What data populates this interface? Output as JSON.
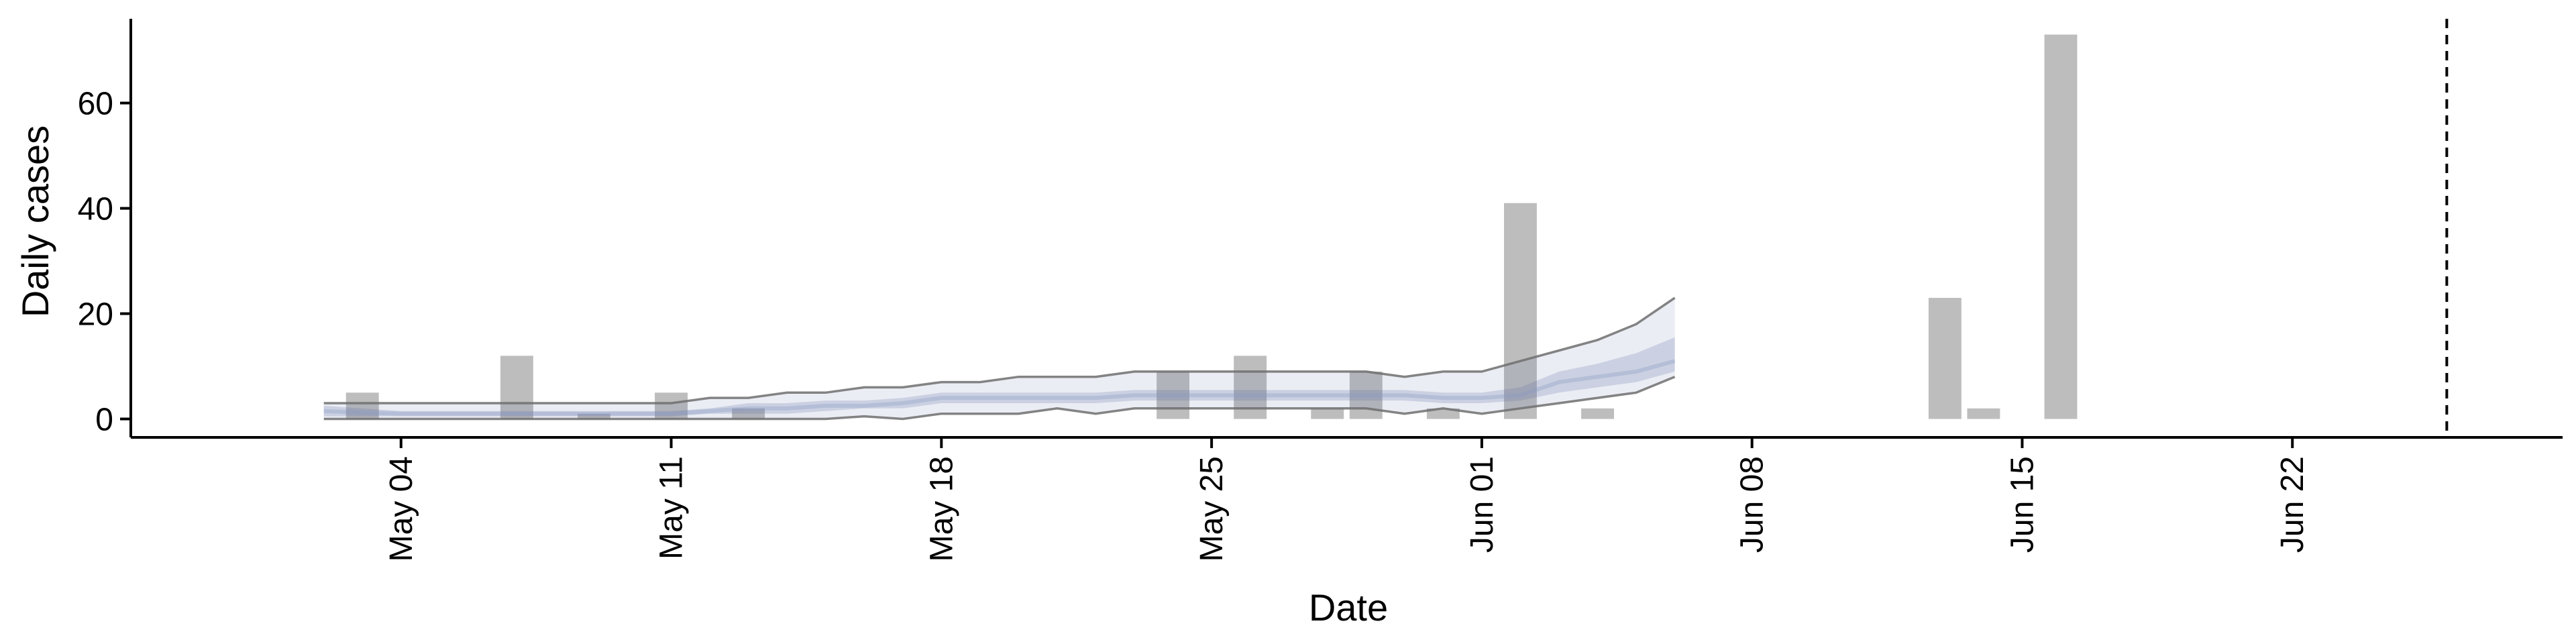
{
  "chart_data": {
    "type": "bar",
    "title": "",
    "xlabel": "Date",
    "ylabel": "Daily cases",
    "ylim": [
      -3.5,
      76
    ],
    "xlim": [
      "2020-04-27",
      "2020-06-29"
    ],
    "yticks": [
      0,
      20,
      40,
      60
    ],
    "xticks": [
      {
        "date": "2020-05-04",
        "label": "May 04"
      },
      {
        "date": "2020-05-11",
        "label": "May 11"
      },
      {
        "date": "2020-05-18",
        "label": "May 18"
      },
      {
        "date": "2020-05-25",
        "label": "May 25"
      },
      {
        "date": "2020-06-01",
        "label": "Jun 01"
      },
      {
        "date": "2020-06-08",
        "label": "Jun 08"
      },
      {
        "date": "2020-06-15",
        "label": "Jun 15"
      },
      {
        "date": "2020-06-22",
        "label": "Jun 22"
      }
    ],
    "grid": false,
    "legend": "none",
    "cases": [
      {
        "date": "2020-05-03",
        "value": 5
      },
      {
        "date": "2020-05-07",
        "value": 12
      },
      {
        "date": "2020-05-09",
        "value": 1
      },
      {
        "date": "2020-05-11",
        "value": 5
      },
      {
        "date": "2020-05-13",
        "value": 2
      },
      {
        "date": "2020-05-24",
        "value": 9
      },
      {
        "date": "2020-05-26",
        "value": 12
      },
      {
        "date": "2020-05-28",
        "value": 2
      },
      {
        "date": "2020-05-29",
        "value": 9
      },
      {
        "date": "2020-05-31",
        "value": 2
      },
      {
        "date": "2020-06-02",
        "value": 41
      },
      {
        "date": "2020-06-04",
        "value": 2
      },
      {
        "date": "2020-06-13",
        "value": 23
      },
      {
        "date": "2020-06-14",
        "value": 2
      },
      {
        "date": "2020-06-16",
        "value": 73
      }
    ],
    "estimate": {
      "dates": [
        "2020-05-02",
        "2020-05-03",
        "2020-05-04",
        "2020-05-05",
        "2020-05-06",
        "2020-05-07",
        "2020-05-08",
        "2020-05-09",
        "2020-05-10",
        "2020-05-11",
        "2020-05-12",
        "2020-05-13",
        "2020-05-14",
        "2020-05-15",
        "2020-05-16",
        "2020-05-17",
        "2020-05-18",
        "2020-05-19",
        "2020-05-20",
        "2020-05-21",
        "2020-05-22",
        "2020-05-23",
        "2020-05-24",
        "2020-05-25",
        "2020-05-26",
        "2020-05-27",
        "2020-05-28",
        "2020-05-29",
        "2020-05-30",
        "2020-05-31",
        "2020-06-01",
        "2020-06-02",
        "2020-06-03",
        "2020-06-04",
        "2020-06-05",
        "2020-06-06"
      ],
      "median": [
        1.5,
        1.2,
        1.0,
        1.0,
        1.0,
        1.0,
        1.0,
        1.0,
        1.0,
        1.0,
        1.5,
        2.0,
        2.0,
        2.5,
        2.5,
        3.0,
        4.0,
        4.0,
        4.0,
        4.0,
        4.0,
        4.5,
        4.5,
        4.5,
        4.5,
        4.5,
        4.5,
        4.5,
        4.5,
        4.0,
        4.0,
        4.5,
        7.0,
        8.0,
        9.0,
        11.0
      ],
      "inner_lower": [
        0.5,
        0.5,
        0.5,
        0.5,
        0.5,
        0.5,
        0.5,
        0.5,
        0.5,
        0.5,
        1.0,
        1.0,
        1.0,
        1.5,
        2.0,
        2.0,
        3.0,
        3.0,
        3.0,
        3.0,
        3.0,
        3.5,
        3.5,
        3.5,
        3.5,
        3.5,
        3.5,
        3.5,
        3.5,
        3.0,
        3.0,
        3.5,
        5.0,
        6.0,
        7.0,
        9.0
      ],
      "inner_upper": [
        2.5,
        2.0,
        1.5,
        1.5,
        1.5,
        1.5,
        1.5,
        1.5,
        1.5,
        1.5,
        2.0,
        3.0,
        3.0,
        3.5,
        3.5,
        4.0,
        5.0,
        5.0,
        5.0,
        5.0,
        5.0,
        5.5,
        5.5,
        5.5,
        5.5,
        5.5,
        5.5,
        5.5,
        5.5,
        5.0,
        5.0,
        6.0,
        9.0,
        10.5,
        12.5,
        15.5
      ],
      "outer_lower": [
        0,
        0,
        0,
        0,
        0,
        0,
        0,
        0,
        0,
        0,
        0,
        0,
        0,
        0,
        0.5,
        0,
        1,
        1,
        1,
        2,
        1,
        2,
        2,
        2,
        2,
        2,
        2,
        2,
        1,
        2,
        1,
        2,
        3,
        4,
        5,
        8
      ],
      "outer_upper": [
        3,
        3,
        3,
        3,
        3,
        3,
        3,
        3,
        3,
        3,
        4,
        4,
        5,
        5,
        6,
        6,
        7,
        7,
        8,
        8,
        8,
        9,
        9,
        9,
        9,
        9,
        9,
        9,
        8,
        9,
        9,
        11,
        13,
        15,
        18,
        23
      ]
    },
    "reference_line": {
      "date": "2020-06-26",
      "style": "dashed"
    }
  }
}
